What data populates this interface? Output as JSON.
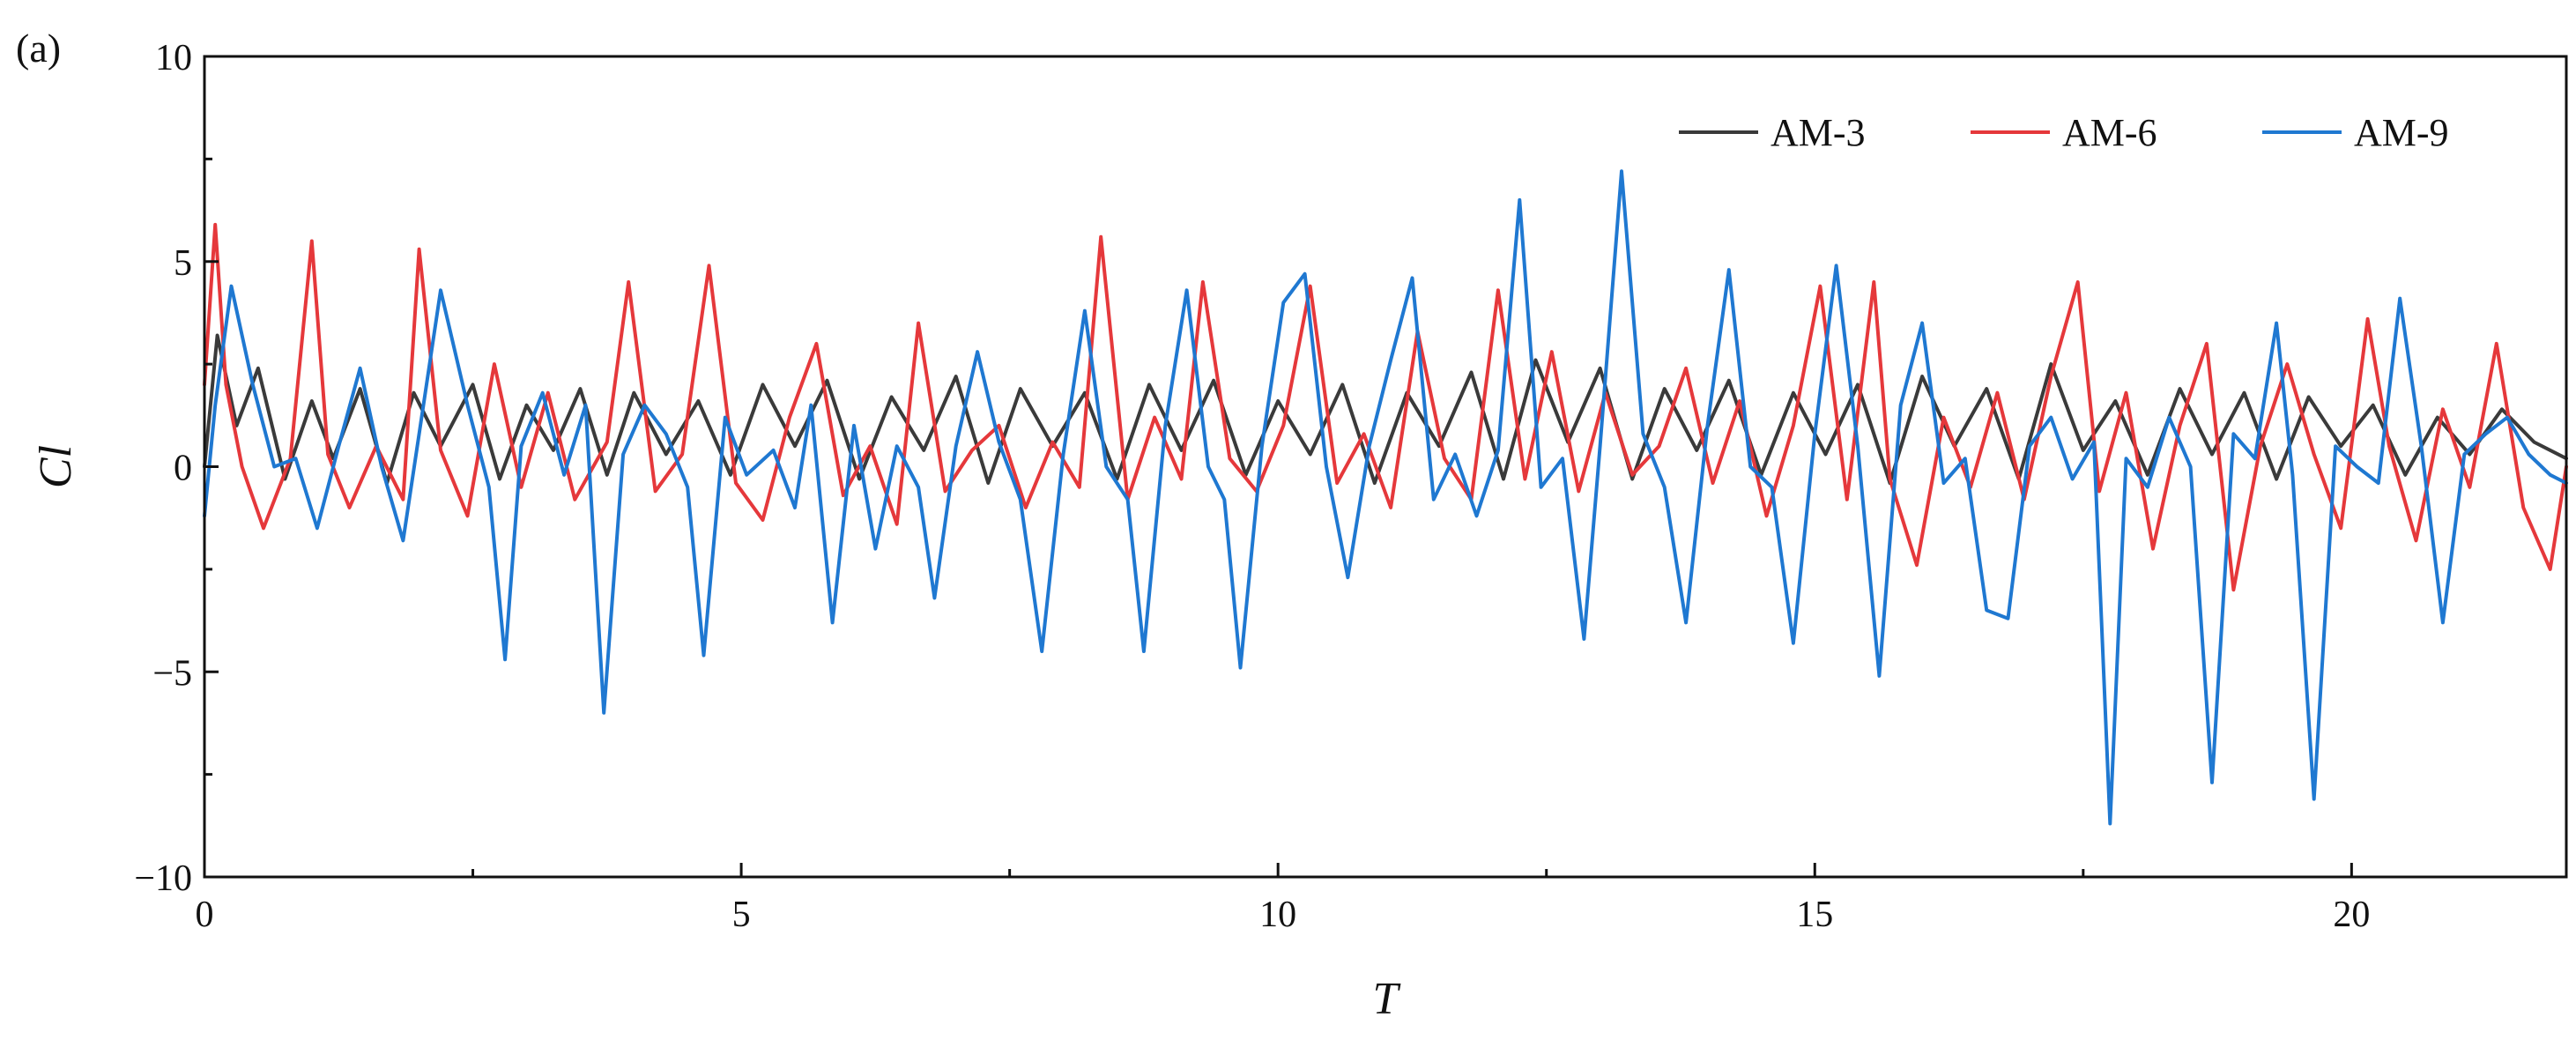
{
  "panel_label": "(a)",
  "chart_data": {
    "type": "line",
    "title": "",
    "xlabel": "T",
    "ylabel": "Cl",
    "xlim": [
      0,
      22
    ],
    "ylim": [
      -10,
      10
    ],
    "x_ticks": [
      0,
      5,
      10,
      15,
      20
    ],
    "y_ticks": [
      -10,
      -5,
      0,
      5,
      10
    ],
    "x_tick_labels": [
      "0",
      "5",
      "10",
      "15",
      "20"
    ],
    "y_tick_labels": [
      "−10",
      "−5",
      "0",
      "5",
      "10"
    ],
    "grid": false,
    "legend_position": "top-right",
    "series": [
      {
        "name": "AM-3",
        "color": "#3a3a3a",
        "x": [
          0,
          0.12,
          0.3,
          0.5,
          0.75,
          1.0,
          1.2,
          1.45,
          1.7,
          1.95,
          2.2,
          2.5,
          2.75,
          3.0,
          3.25,
          3.5,
          3.75,
          4.0,
          4.3,
          4.6,
          4.9,
          5.2,
          5.5,
          5.8,
          6.1,
          6.4,
          6.7,
          7.0,
          7.3,
          7.6,
          7.9,
          8.2,
          8.5,
          8.8,
          9.1,
          9.4,
          9.7,
          10.0,
          10.3,
          10.6,
          10.9,
          11.2,
          11.5,
          11.8,
          12.1,
          12.4,
          12.7,
          13.0,
          13.3,
          13.6,
          13.9,
          14.2,
          14.5,
          14.8,
          15.1,
          15.4,
          15.7,
          16.0,
          16.3,
          16.6,
          16.9,
          17.2,
          17.5,
          17.8,
          18.1,
          18.4,
          18.7,
          19.0,
          19.3,
          19.6,
          19.9,
          20.2,
          20.5,
          20.8,
          21.1,
          21.4,
          21.7,
          22.0
        ],
        "y": [
          0,
          3.2,
          1.0,
          2.4,
          -0.3,
          1.6,
          0.2,
          1.9,
          -0.4,
          1.8,
          0.5,
          2.0,
          -0.3,
          1.5,
          0.4,
          1.9,
          -0.2,
          1.8,
          0.3,
          1.6,
          -0.2,
          2.0,
          0.5,
          2.1,
          -0.3,
          1.7,
          0.4,
          2.2,
          -0.4,
          1.9,
          0.5,
          1.8,
          -0.3,
          2.0,
          0.4,
          2.1,
          -0.2,
          1.6,
          0.3,
          2.0,
          -0.4,
          1.8,
          0.5,
          2.3,
          -0.3,
          2.6,
          0.6,
          2.4,
          -0.3,
          1.9,
          0.4,
          2.1,
          -0.2,
          1.8,
          0.3,
          2.0,
          -0.4,
          2.2,
          0.5,
          1.9,
          -0.3,
          2.5,
          0.4,
          1.6,
          -0.2,
          1.9,
          0.3,
          1.8,
          -0.3,
          1.7,
          0.5,
          1.5,
          -0.2,
          1.2,
          0.3,
          1.4,
          0.6,
          0.2
        ]
      },
      {
        "name": "AM-6",
        "color": "#e5383b",
        "x": [
          0,
          0.1,
          0.2,
          0.35,
          0.55,
          0.8,
          1.0,
          1.15,
          1.35,
          1.6,
          1.85,
          2.0,
          2.2,
          2.45,
          2.7,
          2.95,
          3.2,
          3.45,
          3.75,
          3.95,
          4.2,
          4.45,
          4.7,
          4.95,
          5.2,
          5.45,
          5.7,
          5.95,
          6.2,
          6.45,
          6.65,
          6.9,
          7.15,
          7.4,
          7.65,
          7.9,
          8.15,
          8.35,
          8.6,
          8.85,
          9.1,
          9.3,
          9.55,
          9.8,
          10.05,
          10.3,
          10.55,
          10.8,
          11.05,
          11.3,
          11.55,
          11.8,
          12.05,
          12.3,
          12.55,
          12.8,
          13.05,
          13.3,
          13.55,
          13.8,
          14.05,
          14.3,
          14.55,
          14.8,
          15.05,
          15.3,
          15.55,
          15.7,
          15.95,
          16.2,
          16.45,
          16.7,
          16.95,
          17.2,
          17.45,
          17.65,
          17.9,
          18.15,
          18.4,
          18.65,
          18.9,
          19.15,
          19.4,
          19.65,
          19.9,
          20.15,
          20.35,
          20.6,
          20.85,
          21.1,
          21.35,
          21.6,
          21.85,
          22.0
        ],
        "y": [
          2.0,
          5.9,
          2.0,
          0.0,
          -1.5,
          0.2,
          5.5,
          0.3,
          -1.0,
          0.5,
          -0.8,
          5.3,
          0.4,
          -1.2,
          2.5,
          -0.5,
          1.8,
          -0.8,
          0.6,
          4.5,
          -0.6,
          0.3,
          4.9,
          -0.4,
          -1.3,
          1.2,
          3.0,
          -0.7,
          0.5,
          -1.4,
          3.5,
          -0.6,
          0.4,
          1.0,
          -1.0,
          0.6,
          -0.5,
          5.6,
          -0.8,
          1.2,
          -0.3,
          4.5,
          0.2,
          -0.6,
          1.0,
          4.4,
          -0.4,
          0.8,
          -1.0,
          3.3,
          0.2,
          -0.8,
          4.3,
          -0.3,
          2.8,
          -0.6,
          1.8,
          -0.2,
          0.5,
          2.4,
          -0.4,
          1.6,
          -1.2,
          1.0,
          4.4,
          -0.8,
          4.5,
          -0.3,
          -2.4,
          1.2,
          -0.5,
          1.8,
          -0.8,
          2.2,
          4.5,
          -0.6,
          1.8,
          -2.0,
          1.0,
          3.0,
          -3.0,
          0.5,
          2.5,
          0.3,
          -1.5,
          3.6,
          0.5,
          -1.8,
          1.4,
          -0.5,
          3.0,
          -1.0,
          -2.5,
          0.0
        ]
      },
      {
        "name": "AM-9",
        "color": "#1f78d1",
        "x": [
          0,
          0.1,
          0.25,
          0.45,
          0.65,
          0.85,
          1.05,
          1.25,
          1.45,
          1.65,
          1.85,
          2.0,
          2.2,
          2.45,
          2.65,
          2.8,
          2.95,
          3.15,
          3.35,
          3.55,
          3.72,
          3.9,
          4.1,
          4.3,
          4.5,
          4.65,
          4.85,
          5.05,
          5.3,
          5.5,
          5.65,
          5.85,
          6.05,
          6.25,
          6.45,
          6.65,
          6.8,
          7.0,
          7.2,
          7.4,
          7.6,
          7.8,
          8.0,
          8.2,
          8.4,
          8.6,
          8.75,
          8.95,
          9.15,
          9.35,
          9.5,
          9.65,
          9.85,
          10.05,
          10.25,
          10.45,
          10.65,
          10.85,
          11.05,
          11.25,
          11.45,
          11.65,
          11.85,
          12.05,
          12.25,
          12.45,
          12.65,
          12.85,
          13.0,
          13.2,
          13.4,
          13.6,
          13.8,
          14.0,
          14.2,
          14.4,
          14.6,
          14.8,
          15.0,
          15.2,
          15.4,
          15.6,
          15.8,
          16.0,
          16.2,
          16.4,
          16.6,
          16.8,
          17.0,
          17.2,
          17.4,
          17.6,
          17.75,
          17.9,
          18.1,
          18.3,
          18.5,
          18.7,
          18.9,
          19.1,
          19.3,
          19.45,
          19.65,
          19.85,
          20.05,
          20.25,
          20.45,
          20.65,
          20.85,
          21.05,
          21.25,
          21.45,
          21.65,
          21.85,
          22.0
        ],
        "y": [
          -1.2,
          1.5,
          4.4,
          2.0,
          0.0,
          0.2,
          -1.5,
          0.5,
          2.4,
          0.0,
          -1.8,
          0.8,
          4.3,
          1.5,
          -0.5,
          -4.7,
          0.5,
          1.8,
          -0.2,
          1.5,
          -6.0,
          0.3,
          1.5,
          0.8,
          -0.5,
          -4.6,
          1.2,
          -0.2,
          0.4,
          -1.0,
          1.5,
          -3.8,
          1.0,
          -2.0,
          0.5,
          -0.5,
          -3.2,
          0.5,
          2.8,
          0.6,
          -0.8,
          -4.5,
          0.3,
          3.8,
          0.0,
          -0.8,
          -4.5,
          1.0,
          4.3,
          0.0,
          -0.8,
          -4.9,
          0.5,
          4.0,
          4.7,
          0.0,
          -2.7,
          0.5,
          2.6,
          4.6,
          -0.8,
          0.3,
          -1.2,
          0.4,
          6.5,
          -0.5,
          0.2,
          -4.2,
          0.5,
          7.2,
          0.8,
          -0.5,
          -3.8,
          1.0,
          4.8,
          0.0,
          -0.5,
          -4.3,
          0.8,
          4.9,
          0.5,
          -5.1,
          1.5,
          3.5,
          -0.4,
          0.2,
          -3.5,
          -3.7,
          0.5,
          1.2,
          -0.3,
          0.6,
          -8.7,
          0.2,
          -0.5,
          1.2,
          0.0,
          -7.7,
          0.8,
          0.2,
          3.5,
          -0.2,
          -8.1,
          0.5,
          0.0,
          -0.4,
          4.1,
          0.5,
          -3.8,
          0.3,
          0.8,
          1.2,
          0.3,
          -0.2,
          -0.4
        ]
      }
    ]
  }
}
